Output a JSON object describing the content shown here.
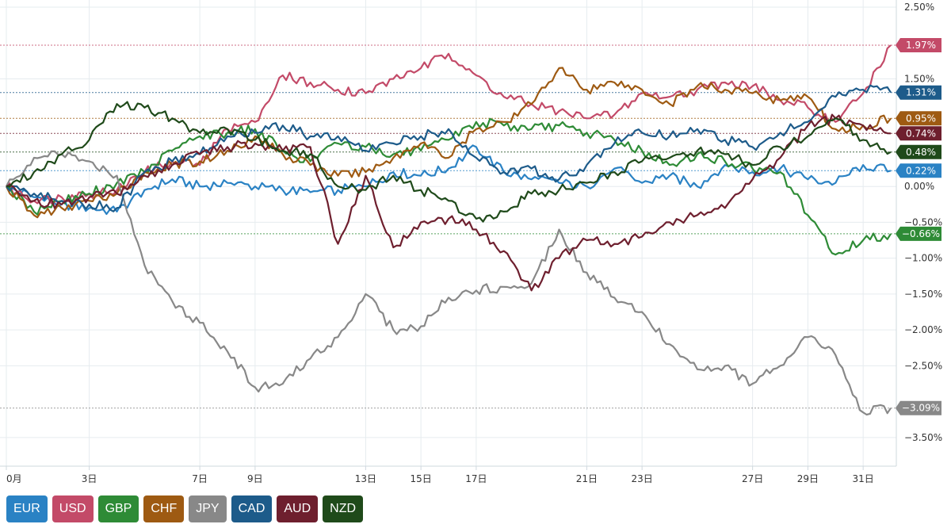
{
  "chart_data": {
    "type": "line",
    "title": "",
    "xlabel": "",
    "ylabel": "",
    "ylim": [
      -3.9,
      2.6
    ],
    "y_ticks": [
      {
        "value": 2.5,
        "label": "2.50%"
      },
      {
        "value": 1.5,
        "label": "1.50%"
      },
      {
        "value": 0.0,
        "label": "0.00%"
      },
      {
        "value": -0.5,
        "label": "−0.50%"
      },
      {
        "value": -1.0,
        "label": "−1.00%"
      },
      {
        "value": -1.5,
        "label": "−1.50%"
      },
      {
        "value": -2.0,
        "label": "−2.00%"
      },
      {
        "value": -2.5,
        "label": "−2.50%"
      },
      {
        "value": -3.5,
        "label": "−3.50%"
      }
    ],
    "x_ticks": [
      {
        "value": 0,
        "label": "0月"
      },
      {
        "value": 3,
        "label": "3日"
      },
      {
        "value": 7,
        "label": "7日"
      },
      {
        "value": 9,
        "label": "9日"
      },
      {
        "value": 13,
        "label": "13日"
      },
      {
        "value": 15,
        "label": "15日"
      },
      {
        "value": 17,
        "label": "17日"
      },
      {
        "value": 21,
        "label": "21日"
      },
      {
        "value": 23,
        "label": "23日"
      },
      {
        "value": 27,
        "label": "27日"
      },
      {
        "value": 29,
        "label": "29日"
      },
      {
        "value": 31,
        "label": "31日"
      }
    ],
    "x_positions": [
      0,
      3,
      7,
      9,
      13,
      15,
      17,
      21,
      23,
      27,
      29,
      31
    ],
    "series": [
      {
        "name": "EUR",
        "color": "#2a82c4",
        "final_label": "0.22%",
        "final": 0.22,
        "points": [
          [
            0,
            0
          ],
          [
            1,
            -0.15
          ],
          [
            2,
            -0.25
          ],
          [
            3,
            -0.3
          ],
          [
            4,
            -0.35
          ],
          [
            5,
            -0.05
          ],
          [
            6,
            0.1
          ],
          [
            7,
            0.0
          ],
          [
            8,
            0.05
          ],
          [
            9,
            0.0
          ],
          [
            10,
            -0.05
          ],
          [
            11,
            -0.08
          ],
          [
            12,
            -0.05
          ],
          [
            13,
            0.0
          ],
          [
            14,
            0.2
          ],
          [
            15,
            0.15
          ],
          [
            16,
            0.25
          ],
          [
            17,
            0.55
          ],
          [
            18,
            0.2
          ],
          [
            19,
            0.1
          ],
          [
            20,
            0.05
          ],
          [
            21,
            0.0
          ],
          [
            22,
            0.25
          ],
          [
            23,
            0.05
          ],
          [
            24,
            0.15
          ],
          [
            25,
            0.0
          ],
          [
            26,
            0.3
          ],
          [
            27,
            0.2
          ],
          [
            28,
            0.25
          ],
          [
            29,
            0.1
          ],
          [
            30,
            0.05
          ],
          [
            31,
            0.3
          ],
          [
            32,
            0.22
          ]
        ]
      },
      {
        "name": "USD",
        "color": "#c34a68",
        "final_label": "1.97%",
        "final": 1.97,
        "points": [
          [
            0,
            0
          ],
          [
            1,
            -0.2
          ],
          [
            2,
            -0.15
          ],
          [
            3,
            -0.1
          ],
          [
            4,
            -0.05
          ],
          [
            5,
            0.2
          ],
          [
            6,
            0.35
          ],
          [
            7,
            0.3
          ],
          [
            8,
            0.8
          ],
          [
            9,
            0.9
          ],
          [
            10,
            1.55
          ],
          [
            11,
            1.45
          ],
          [
            12,
            1.35
          ],
          [
            13,
            1.3
          ],
          [
            14,
            1.5
          ],
          [
            15,
            1.65
          ],
          [
            16,
            1.85
          ],
          [
            17,
            1.55
          ],
          [
            18,
            1.25
          ],
          [
            19,
            1.15
          ],
          [
            20,
            1.05
          ],
          [
            21,
            0.95
          ],
          [
            22,
            1.0
          ],
          [
            23,
            1.3
          ],
          [
            24,
            1.25
          ],
          [
            25,
            1.35
          ],
          [
            26,
            1.45
          ],
          [
            27,
            1.4
          ],
          [
            28,
            1.2
          ],
          [
            29,
            1.1
          ],
          [
            30,
            0.9
          ],
          [
            31,
            1.3
          ],
          [
            32,
            1.97
          ]
        ]
      },
      {
        "name": "GBP",
        "color": "#2e8b36",
        "final_label": "−0.66%",
        "final": -0.66,
        "points": [
          [
            0,
            0
          ],
          [
            1,
            -0.35
          ],
          [
            2,
            -0.2
          ],
          [
            3,
            -0.1
          ],
          [
            4,
            0.05
          ],
          [
            5,
            0.2
          ],
          [
            6,
            0.5
          ],
          [
            7,
            0.7
          ],
          [
            8,
            0.75
          ],
          [
            9,
            0.8
          ],
          [
            10,
            0.5
          ],
          [
            11,
            0.35
          ],
          [
            12,
            0.6
          ],
          [
            13,
            0.55
          ],
          [
            14,
            0.45
          ],
          [
            15,
            0.5
          ],
          [
            16,
            0.65
          ],
          [
            17,
            0.9
          ],
          [
            18,
            0.85
          ],
          [
            19,
            0.8
          ],
          [
            20,
            0.85
          ],
          [
            21,
            0.75
          ],
          [
            22,
            0.65
          ],
          [
            23,
            0.5
          ],
          [
            24,
            0.3
          ],
          [
            25,
            0.45
          ],
          [
            26,
            0.35
          ],
          [
            27,
            0.25
          ],
          [
            28,
            0.2
          ],
          [
            29,
            -0.4
          ],
          [
            30,
            -0.95
          ],
          [
            31,
            -0.75
          ],
          [
            32,
            -0.66
          ]
        ]
      },
      {
        "name": "CHF",
        "color": "#9e5a12",
        "final_label": "0.95%",
        "final": 0.95,
        "points": [
          [
            0,
            0
          ],
          [
            1,
            -0.4
          ],
          [
            2,
            -0.3
          ],
          [
            3,
            -0.2
          ],
          [
            4,
            -0.1
          ],
          [
            5,
            0.2
          ],
          [
            6,
            0.3
          ],
          [
            7,
            0.35
          ],
          [
            8,
            0.5
          ],
          [
            9,
            0.7
          ],
          [
            10,
            0.45
          ],
          [
            11,
            0.3
          ],
          [
            12,
            0.15
          ],
          [
            13,
            0.2
          ],
          [
            14,
            0.4
          ],
          [
            15,
            0.6
          ],
          [
            16,
            0.4
          ],
          [
            17,
            0.8
          ],
          [
            18,
            0.9
          ],
          [
            19,
            1.15
          ],
          [
            20,
            1.65
          ],
          [
            21,
            1.35
          ],
          [
            22,
            1.45
          ],
          [
            23,
            1.35
          ],
          [
            24,
            1.15
          ],
          [
            25,
            1.4
          ],
          [
            26,
            1.35
          ],
          [
            27,
            1.3
          ],
          [
            28,
            1.2
          ],
          [
            29,
            1.25
          ],
          [
            30,
            0.8
          ],
          [
            31,
            0.85
          ],
          [
            32,
            0.95
          ]
        ]
      },
      {
        "name": "JPY",
        "color": "#888888",
        "final_label": "−3.09%",
        "final": -3.09,
        "points": [
          [
            0,
            0
          ],
          [
            1,
            0.4
          ],
          [
            2,
            0.45
          ],
          [
            3,
            0.35
          ],
          [
            4,
            0.15
          ],
          [
            5,
            -1.1
          ],
          [
            6,
            -1.6
          ],
          [
            7,
            -1.9
          ],
          [
            8,
            -2.3
          ],
          [
            9,
            -2.8
          ],
          [
            10,
            -2.75
          ],
          [
            11,
            -2.4
          ],
          [
            12,
            -2.1
          ],
          [
            13,
            -1.5
          ],
          [
            14,
            -2.0
          ],
          [
            15,
            -1.95
          ],
          [
            16,
            -1.55
          ],
          [
            17,
            -1.45
          ],
          [
            18,
            -1.4
          ],
          [
            19,
            -1.35
          ],
          [
            20,
            -0.6
          ],
          [
            21,
            -1.2
          ],
          [
            22,
            -1.55
          ],
          [
            23,
            -1.75
          ],
          [
            24,
            -2.2
          ],
          [
            25,
            -2.55
          ],
          [
            26,
            -2.5
          ],
          [
            27,
            -2.75
          ],
          [
            28,
            -2.5
          ],
          [
            29,
            -2.1
          ],
          [
            30,
            -2.35
          ],
          [
            31,
            -3.15
          ],
          [
            32,
            -3.09
          ]
        ]
      },
      {
        "name": "CAD",
        "color": "#1d5b8a",
        "final_label": "1.31%",
        "final": 1.31,
        "points": [
          [
            0,
            0
          ],
          [
            1,
            -0.1
          ],
          [
            2,
            -0.2
          ],
          [
            3,
            -0.25
          ],
          [
            4,
            -0.3
          ],
          [
            5,
            0.2
          ],
          [
            6,
            0.35
          ],
          [
            7,
            0.45
          ],
          [
            8,
            0.7
          ],
          [
            9,
            0.75
          ],
          [
            10,
            0.85
          ],
          [
            11,
            0.7
          ],
          [
            12,
            0.7
          ],
          [
            13,
            0.5
          ],
          [
            14,
            0.6
          ],
          [
            15,
            0.7
          ],
          [
            16,
            0.8
          ],
          [
            17,
            0.4
          ],
          [
            18,
            0.2
          ],
          [
            19,
            0.25
          ],
          [
            20,
            0.1
          ],
          [
            21,
            0.3
          ],
          [
            22,
            0.6
          ],
          [
            23,
            0.75
          ],
          [
            24,
            0.7
          ],
          [
            25,
            0.8
          ],
          [
            26,
            0.65
          ],
          [
            27,
            0.55
          ],
          [
            28,
            0.75
          ],
          [
            29,
            0.9
          ],
          [
            30,
            1.25
          ],
          [
            31,
            1.35
          ],
          [
            32,
            1.31
          ]
        ]
      },
      {
        "name": "AUD",
        "color": "#6e1f2e",
        "final_label": "0.74%",
        "final": 0.74,
        "points": [
          [
            0,
            0
          ],
          [
            1,
            -0.2
          ],
          [
            2,
            -0.25
          ],
          [
            3,
            -0.15
          ],
          [
            4,
            -0.1
          ],
          [
            5,
            0.15
          ],
          [
            6,
            0.3
          ],
          [
            7,
            0.45
          ],
          [
            8,
            0.55
          ],
          [
            9,
            0.6
          ],
          [
            10,
            0.5
          ],
          [
            11,
            0.55
          ],
          [
            12,
            -0.8
          ],
          [
            13,
            0.15
          ],
          [
            14,
            -0.85
          ],
          [
            15,
            -0.5
          ],
          [
            16,
            -0.45
          ],
          [
            17,
            -0.6
          ],
          [
            18,
            -0.9
          ],
          [
            19,
            -1.45
          ],
          [
            20,
            -1.0
          ],
          [
            21,
            -0.75
          ],
          [
            22,
            -0.8
          ],
          [
            23,
            -0.7
          ],
          [
            24,
            -0.5
          ],
          [
            25,
            -0.4
          ],
          [
            26,
            -0.3
          ],
          [
            27,
            0.1
          ],
          [
            28,
            0.4
          ],
          [
            29,
            0.85
          ],
          [
            30,
            0.95
          ],
          [
            31,
            0.85
          ],
          [
            32,
            0.74
          ]
        ]
      },
      {
        "name": "NZD",
        "color": "#1f4a1a",
        "final_label": "0.48%",
        "final": 0.48,
        "points": [
          [
            0,
            0
          ],
          [
            1,
            0.2
          ],
          [
            2,
            0.45
          ],
          [
            3,
            0.65
          ],
          [
            4,
            1.15
          ],
          [
            5,
            1.1
          ],
          [
            6,
            0.95
          ],
          [
            7,
            0.75
          ],
          [
            8,
            0.8
          ],
          [
            9,
            0.65
          ],
          [
            10,
            0.5
          ],
          [
            11,
            0.45
          ],
          [
            12,
            0.0
          ],
          [
            13,
            -0.05
          ],
          [
            14,
            0.15
          ],
          [
            15,
            -0.05
          ],
          [
            16,
            -0.2
          ],
          [
            17,
            -0.45
          ],
          [
            18,
            -0.35
          ],
          [
            19,
            -0.1
          ],
          [
            20,
            -0.05
          ],
          [
            21,
            0.05
          ],
          [
            22,
            0.2
          ],
          [
            23,
            0.35
          ],
          [
            24,
            0.4
          ],
          [
            25,
            0.5
          ],
          [
            26,
            0.45
          ],
          [
            27,
            0.3
          ],
          [
            28,
            0.55
          ],
          [
            29,
            0.7
          ],
          [
            30,
            0.95
          ],
          [
            31,
            0.65
          ],
          [
            32,
            0.48
          ]
        ]
      }
    ]
  }
}
